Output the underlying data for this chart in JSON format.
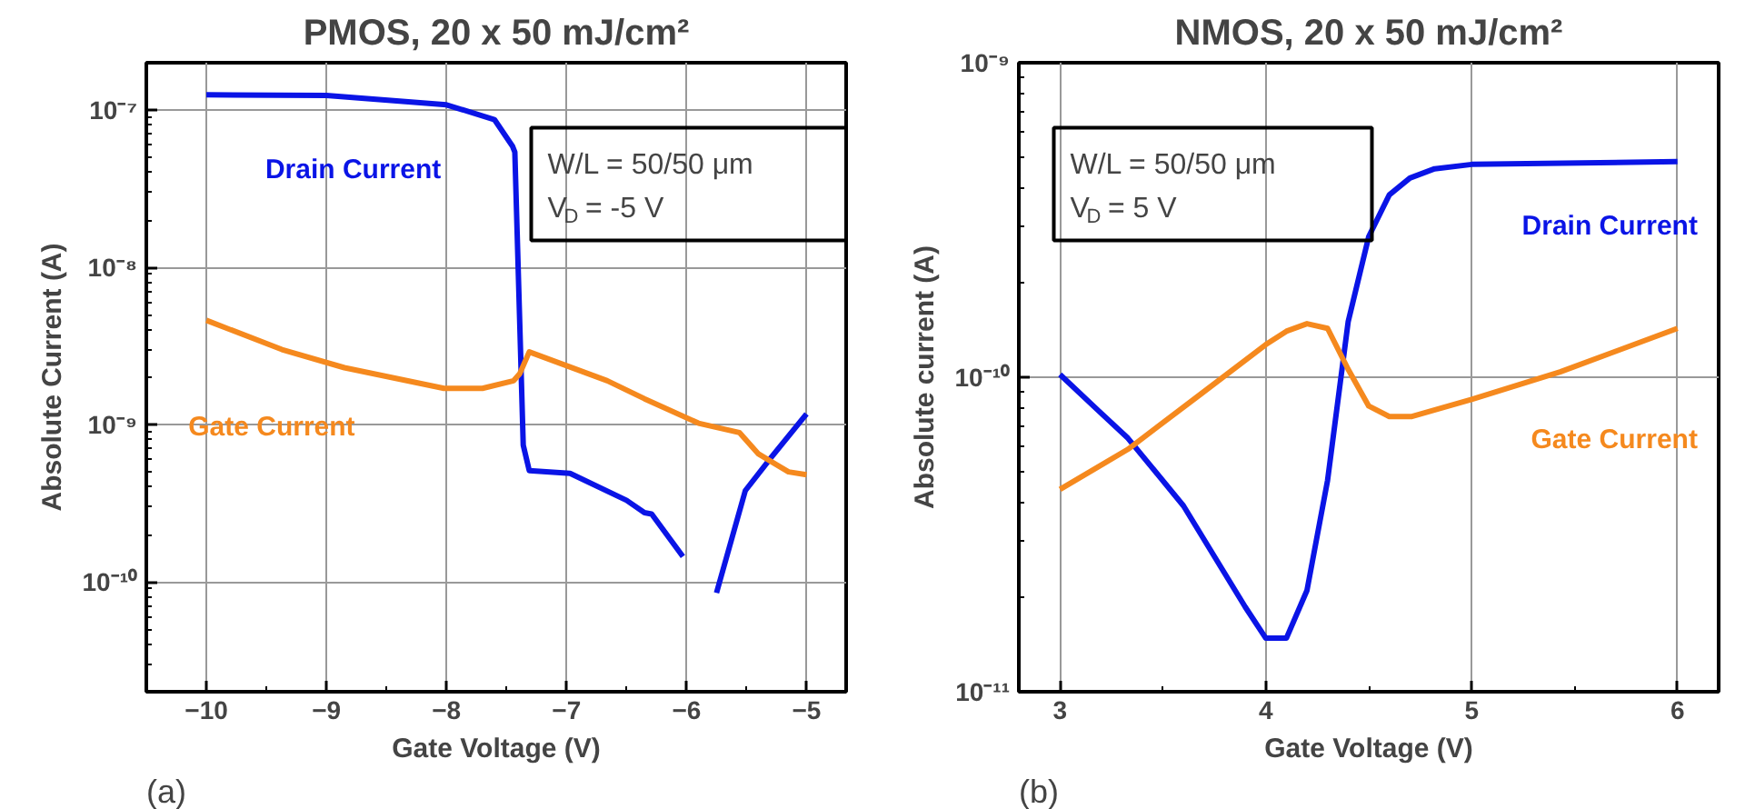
{
  "chart_data": [
    {
      "type": "line",
      "title": "PMOS, 20 x 50 mJ/cm²",
      "xlabel": "Gate Voltage (V)",
      "ylabel": "Absolute Current (A)",
      "log": "y",
      "grid": true,
      "legend": false,
      "marker": "none",
      "line_style": "solid",
      "xlim": [
        -10.5,
        -4.67
      ],
      "xticks": [
        -10,
        -9,
        -8,
        -7,
        -6,
        -5
      ],
      "ylim": [
        2e-11,
        2e-07
      ],
      "yticks": [
        {
          "value": 1e-10,
          "label": "10⁻¹⁰"
        },
        {
          "value": 1e-09,
          "label": "10⁻⁹"
        },
        {
          "value": 1e-08,
          "label": "10⁻⁸"
        },
        {
          "value": 1e-07,
          "label": "10⁻⁷"
        }
      ],
      "annotations": [
        "W/L = 50/50 μm",
        "V$_{D}$ = -5 V",
        "(a)"
      ],
      "series": [
        {
          "name": "Drain Current",
          "color": "#0a14e6",
          "x": [
            -10,
            -9,
            -8,
            -7.6,
            -7.45,
            -7.43,
            -7.36,
            -7.31,
            -6.97,
            -6.5,
            -6.35,
            -6.29,
            -6.03,
            -5.9,
            -5.82,
            -5.75,
            -5.51,
            -5.3,
            -5
          ],
          "values": [
            1.25e-07,
            1.24e-07,
            1.08e-07,
            8.7e-08,
            5.9e-08,
            5.4e-08,
            7.4e-10,
            5.1e-10,
            4.9e-10,
            3.3e-10,
            2.75e-10,
            2.7e-10,
            1.45e-10,
            null,
            null,
            8.5e-11,
            3.8e-10,
            6.1e-10,
            1.17e-09
          ]
        },
        {
          "name": "Gate Current",
          "color": "#f5891e",
          "x": [
            -10,
            -9.37,
            -8.85,
            -8.02,
            -7.7,
            -7.44,
            -7.39,
            -7.31,
            -6.66,
            -6.35,
            -5.9,
            -5.56,
            -5.4,
            -5.15,
            -5
          ],
          "values": [
            4.6e-09,
            3e-09,
            2.3e-09,
            1.7e-09,
            1.7e-09,
            1.9e-09,
            2.1e-09,
            2.9e-09,
            1.9e-09,
            1.46e-09,
            1.02e-09,
            8.9e-10,
            6.5e-10,
            5e-10,
            4.8e-10
          ]
        }
      ]
    },
    {
      "type": "line",
      "title": "NMOS, 20 x 50 mJ/cm²",
      "xlabel": "Gate Voltage (V)",
      "ylabel": "Absolute current (A)",
      "log": "y",
      "grid": true,
      "legend": false,
      "marker": "none",
      "line_style": "solid",
      "xlim": [
        2.8,
        6.2
      ],
      "xticks": [
        3,
        4,
        5,
        6
      ],
      "ylim": [
        1e-11,
        1e-09
      ],
      "yticks": [
        {
          "value": 1e-11,
          "label": "10⁻¹¹"
        },
        {
          "value": 1e-10,
          "label": "10⁻¹⁰"
        },
        {
          "value": 1e-09,
          "label": "10⁻⁹"
        }
      ],
      "annotations": [
        "W/L = 50/50 μm",
        "V$_{D}$ = 5 V",
        "(b)"
      ],
      "series": [
        {
          "name": "Drain Current",
          "color": "#0a14e6",
          "x": [
            3.0,
            3.18,
            3.33,
            3.6,
            3.9,
            4.0,
            4.1,
            4.2,
            4.3,
            4.4,
            4.5,
            4.6,
            4.7,
            4.82,
            5.0,
            6.0
          ],
          "values": [
            1.02e-10,
            7.9e-11,
            6.4e-11,
            3.9e-11,
            1.86e-11,
            1.48e-11,
            1.48e-11,
            2.1e-11,
            4.7e-11,
            1.5e-10,
            2.8e-10,
            3.8e-10,
            4.3e-10,
            4.6e-10,
            4.75e-10,
            4.85e-10
          ]
        },
        {
          "name": "Gate Current",
          "color": "#f5891e",
          "x": [
            3.0,
            3.33,
            3.69,
            4.0,
            4.1,
            4.2,
            4.3,
            4.4,
            4.5,
            4.6,
            4.71,
            5.0,
            5.43,
            6.0
          ],
          "values": [
            4.4e-11,
            5.9e-11,
            8.9e-11,
            1.27e-10,
            1.4e-10,
            1.48e-10,
            1.43e-10,
            1.06e-10,
            8.1e-11,
            7.5e-11,
            7.5e-11,
            8.5e-11,
            1.04e-10,
            1.43e-10
          ]
        }
      ]
    }
  ]
}
